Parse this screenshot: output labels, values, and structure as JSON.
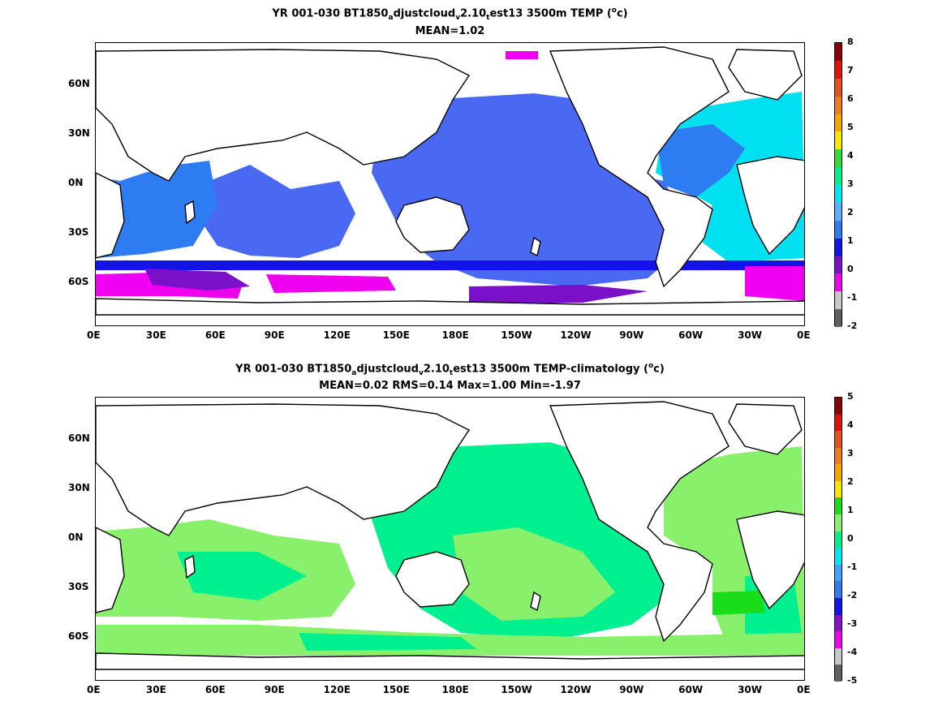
{
  "panels": [
    {
      "title": {
        "pre": "YR 001-030 BT1850",
        "sub1": "a",
        "mid1": "djustcloud",
        "sub2": "v",
        "mid2": "2.10",
        "sub3": "t",
        "post": "est13 3500m TEMP (",
        "sup": "o",
        "tail": "c)"
      },
      "stats": "MEAN=1.02",
      "colorbar": {
        "labels": [
          "8",
          "7",
          "6",
          "5",
          "4",
          "3",
          "2",
          "1",
          "0",
          "-1",
          "-2"
        ],
        "colors": [
          "#8b0000",
          "#e01010",
          "#e8501a",
          "#f07d20",
          "#f7a800",
          "#f8e800",
          "#33dd33",
          "#00f090",
          "#00e8f0",
          "#5ab0ff",
          "#2e7cf2",
          "#1313e8",
          "#7a10c8",
          "#f000f0",
          "#c8c8c8",
          "#606060"
        ]
      },
      "regions": [
        {
          "kind": "ocean-main",
          "color": "#4a69f2"
        },
        {
          "kind": "atlantic",
          "color": "#00e0f0"
        },
        {
          "kind": "southern-band",
          "color": "#1313e8"
        },
        {
          "kind": "antarctic",
          "color": "#f000f0"
        }
      ]
    },
    {
      "title": {
        "pre": "YR 001-030 BT1850",
        "sub1": "a",
        "mid1": "djustcloud",
        "sub2": "v",
        "mid2": "2.10",
        "sub3": "t",
        "post": "est13 3500m TEMP-climatology (",
        "sup": "o",
        "tail": "c)"
      },
      "stats": "MEAN=0.02   RMS=0.14   Max=1.00   Min=-1.97",
      "colorbar": {
        "labels": [
          "5",
          "4",
          "3",
          "2",
          "1",
          "0",
          "-1",
          "-2",
          "-3",
          "-4",
          "-5"
        ],
        "colors": [
          "#8b0000",
          "#e01010",
          "#e8501a",
          "#f07d20",
          "#f7a800",
          "#f8e800",
          "#18dd18",
          "#88f06a",
          "#00f090",
          "#00e8f0",
          "#3aa6ff",
          "#2e7cf2",
          "#1313e8",
          "#8a10c8",
          "#f000f0",
          "#c8c8c8",
          "#606060"
        ]
      },
      "regions": [
        {
          "kind": "ocean-main",
          "color": "#00f090"
        },
        {
          "kind": "light-green",
          "color": "#88f06a"
        }
      ]
    }
  ],
  "x_ticks": [
    "0E",
    "30E",
    "60E",
    "90E",
    "120E",
    "150E",
    "180E",
    "150W",
    "120W",
    "90W",
    "60W",
    "30W",
    "0E"
  ],
  "y_ticks": [
    "60N",
    "30N",
    "0N",
    "30S",
    "60S"
  ]
}
